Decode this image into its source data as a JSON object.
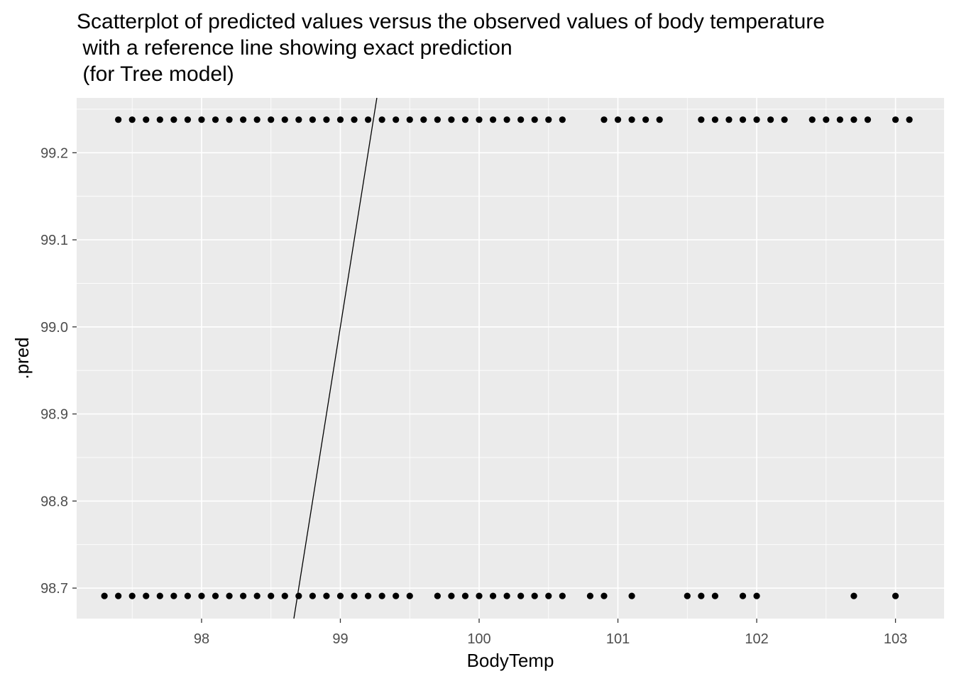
{
  "chart_data": {
    "type": "scatter",
    "title": "Scatterplot of predicted values versus the observed values of body temperature\n with a reference line showing exact prediction\n (for Tree model)",
    "xlabel": "BodyTemp",
    "ylabel": ".pred",
    "xlim": [
      97.1,
      103.35
    ],
    "ylim": [
      98.665,
      99.263
    ],
    "x_ticks": [
      98,
      99,
      100,
      101,
      102,
      103
    ],
    "y_ticks": [
      98.7,
      98.8,
      98.9,
      99.0,
      99.1,
      99.2
    ],
    "x_tick_labels": [
      "98",
      "99",
      "100",
      "101",
      "102",
      "103"
    ],
    "y_tick_labels": [
      "98.7",
      "98.8",
      "98.9",
      "99.0",
      "99.1",
      "99.2"
    ],
    "grid": true,
    "reference_line": {
      "slope": 1,
      "intercept": 0
    },
    "series": [
      {
        "y": 99.238,
        "x": [
          97.4,
          97.5,
          97.6,
          97.7,
          97.8,
          97.9,
          98.0,
          98.1,
          98.2,
          98.3,
          98.4,
          98.5,
          98.6,
          98.7,
          98.8,
          98.9,
          99.0,
          99.1,
          99.2,
          99.3,
          99.4,
          99.5,
          99.6,
          99.7,
          99.8,
          99.9,
          100.0,
          100.1,
          100.2,
          100.3,
          100.4,
          100.5,
          100.6,
          100.9,
          101.0,
          101.1,
          101.2,
          101.3,
          101.6,
          101.7,
          101.8,
          101.9,
          102.0,
          102.1,
          102.2,
          102.4,
          102.5,
          102.6,
          102.7,
          102.8,
          103.0,
          103.1
        ]
      },
      {
        "y": 98.691,
        "x": [
          97.3,
          97.4,
          97.5,
          97.6,
          97.7,
          97.8,
          97.9,
          98.0,
          98.1,
          98.2,
          98.3,
          98.4,
          98.5,
          98.6,
          98.7,
          98.8,
          98.9,
          99.0,
          99.1,
          99.2,
          99.3,
          99.4,
          99.5,
          99.7,
          99.8,
          99.9,
          100.0,
          100.1,
          100.2,
          100.3,
          100.4,
          100.5,
          100.6,
          100.8,
          100.9,
          101.1,
          101.5,
          101.6,
          101.7,
          101.9,
          102.0,
          102.7,
          103.0
        ]
      }
    ]
  }
}
